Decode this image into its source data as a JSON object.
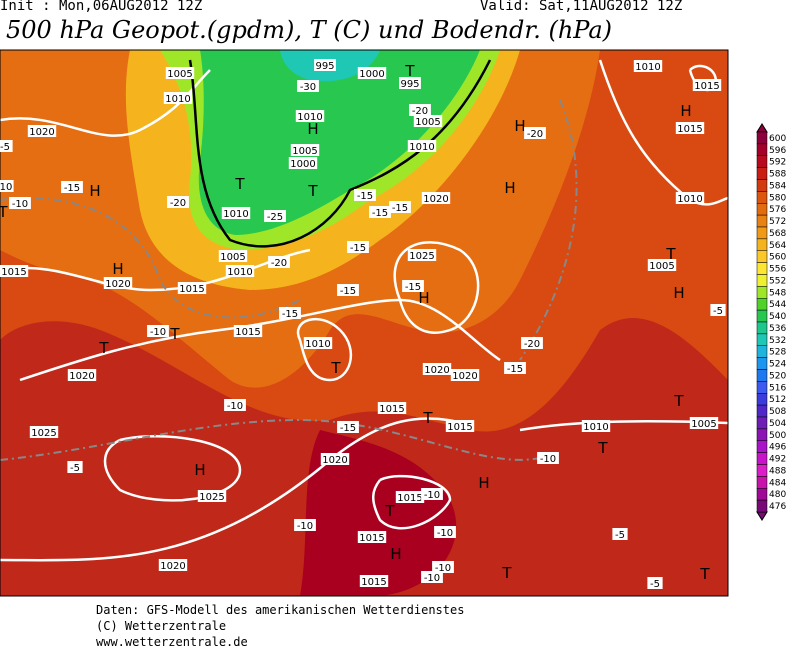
{
  "header": {
    "init": "Init : Mon,06AUG2012 12Z",
    "valid": "Valid: Sat,11AUG2012 12Z",
    "title": "500 hPa Geopot.(gpdm), T (C) und Bodendr. (hPa)"
  },
  "colorbar": {
    "labels": [
      600,
      596,
      592,
      588,
      584,
      580,
      576,
      572,
      568,
      564,
      560,
      556,
      552,
      548,
      544,
      540,
      536,
      532,
      528,
      524,
      520,
      516,
      512,
      508,
      504,
      500,
      496,
      492,
      488,
      484,
      480,
      476
    ],
    "colors": [
      "#8c003c",
      "#a4002c",
      "#b80a1e",
      "#c81e14",
      "#d23a10",
      "#dc560f",
      "#e26c10",
      "#e88214",
      "#f09a18",
      "#f5b41e",
      "#fac828",
      "#fde632",
      "#f0f032",
      "#a0e628",
      "#50d228",
      "#28c850",
      "#1ec88c",
      "#1ec8b4",
      "#1eb4dc",
      "#1e96f0",
      "#1e78f0",
      "#3c5af0",
      "#3c3cdc",
      "#5028c8",
      "#6e1eb4",
      "#8c14b4",
      "#aa14c8",
      "#c814c8",
      "#dc1ec8",
      "#c814aa",
      "#a00a96",
      "#780a78"
    ]
  },
  "map_labels": [
    "1005",
    "1010",
    "1020",
    "H",
    "-15",
    "-10",
    "-20",
    "H",
    "1020",
    "1015",
    "T",
    "H",
    "1010",
    "1005",
    "1000",
    "T",
    "-25",
    "1010",
    "-30",
    "995",
    "1000",
    "995",
    "T",
    "-20",
    "1005",
    "1010",
    "H",
    "-20",
    "H",
    "1020",
    "-15",
    "-15",
    "-15",
    "-15",
    "1005",
    "-20",
    "1010",
    "1015",
    "-15",
    "T",
    "-10",
    "1015",
    "1010",
    "T",
    "-15",
    "1025",
    "-15",
    "H",
    "1020",
    "1020",
    "-15",
    "-20",
    "T",
    "1020",
    "-10",
    "1015",
    "-15",
    "T",
    "1015",
    "1025",
    "-5",
    "H",
    "1020",
    "1025",
    "-10",
    "1015",
    "-10",
    "H",
    "T",
    "-10",
    "1015",
    "H",
    "-10",
    "-10",
    "1015",
    "T",
    "1020",
    "-10",
    "T",
    "1010",
    "1005",
    "-5",
    "-5",
    "T",
    "T",
    "H",
    "-5",
    "1005",
    "T",
    "1010",
    "H",
    "1015",
    "1015",
    "1010",
    "-5",
    "10",
    "T"
  ],
  "footer": [
    "Daten: GFS-Modell des amerikanischen Wetterdienstes",
    "(C) Wetterzentrale",
    "www.wetterzentrale.de"
  ]
}
